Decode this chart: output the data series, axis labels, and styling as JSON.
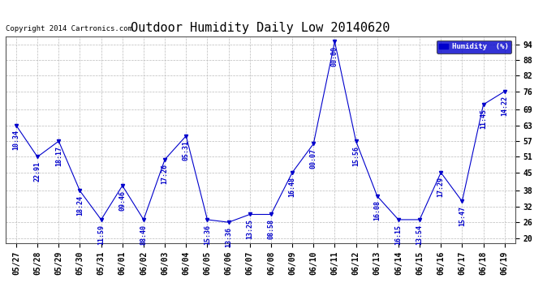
{
  "title": "Outdoor Humidity Daily Low 20140620",
  "copyright": "Copyright 2014 Cartronics.com",
  "legend_label": "Humidity  (%)",
  "x_labels": [
    "05/27",
    "05/28",
    "05/29",
    "05/30",
    "05/31",
    "06/01",
    "06/02",
    "06/03",
    "06/04",
    "06/05",
    "06/06",
    "06/07",
    "06/08",
    "06/09",
    "06/10",
    "06/11",
    "06/12",
    "06/13",
    "06/14",
    "06/15",
    "06/16",
    "06/17",
    "06/18",
    "06/19"
  ],
  "y_values": [
    63,
    51,
    57,
    38,
    27,
    40,
    27,
    50,
    59,
    27,
    26,
    29,
    29,
    45,
    56,
    95,
    57,
    36,
    27,
    27,
    45,
    34,
    71,
    76
  ],
  "time_labels": [
    "10:34",
    "22:91",
    "18:17",
    "18:24",
    "11:59",
    "09:46",
    "88:40",
    "17:26",
    "05:31",
    "15:36",
    "13:36",
    "13:25",
    "08:58",
    "16:48",
    "00:07",
    "00:00",
    "15:56",
    "16:08",
    "16:15",
    "13:54",
    "17:29",
    "15:47",
    "11:45",
    "14:22"
  ],
  "line_color": "#0000CC",
  "marker_color": "#0000CC",
  "bg_color": "#ffffff",
  "grid_color": "#bbbbbb",
  "ylim": [
    18,
    97
  ],
  "yticks": [
    20,
    26,
    32,
    38,
    45,
    51,
    57,
    63,
    69,
    76,
    82,
    88,
    94
  ],
  "title_fontsize": 11,
  "axis_fontsize": 7,
  "label_fontsize": 6,
  "copyright_fontsize": 6.5
}
